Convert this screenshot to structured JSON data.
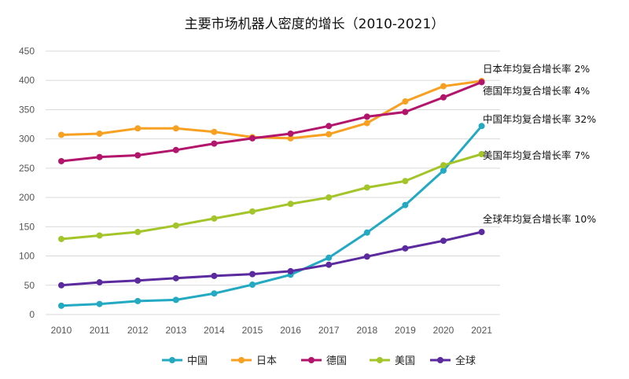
{
  "chart_data": {
    "type": "line",
    "title": "主要市场机器人密度的增长（2010-2021）",
    "xlabel": "",
    "ylabel": "",
    "ylim": [
      0,
      450
    ],
    "yticks": [
      "0",
      "50",
      "100",
      "150",
      "200",
      "250",
      "300",
      "350",
      "400",
      "450"
    ],
    "x": [
      "2010",
      "2011",
      "2012",
      "2013",
      "2014",
      "2015",
      "2016",
      "2017",
      "2018",
      "2019",
      "2020",
      "2021"
    ],
    "grid": true,
    "legend_position": "bottom",
    "series": [
      {
        "name": "中国",
        "color": "#23A9C2",
        "values": [
          15,
          18,
          23,
          25,
          36,
          51,
          68,
          97,
          140,
          187,
          246,
          322
        ]
      },
      {
        "name": "日本",
        "color": "#F7A021",
        "values": [
          307,
          309,
          318,
          318,
          312,
          303,
          301,
          308,
          327,
          364,
          390,
          399
        ]
      },
      {
        "name": "德国",
        "color": "#B2156B",
        "values": [
          262,
          269,
          272,
          281,
          292,
          301,
          309,
          322,
          338,
          346,
          371,
          397
        ]
      },
      {
        "name": "美国",
        "color": "#A4C52A",
        "values": [
          129,
          135,
          141,
          152,
          164,
          176,
          189,
          200,
          217,
          228,
          255,
          274
        ]
      },
      {
        "name": "全球",
        "color": "#5B2A9E",
        "values": [
          50,
          55,
          58,
          62,
          66,
          69,
          74,
          85,
          99,
          113,
          126,
          141
        ]
      }
    ],
    "annotations": [
      {
        "series": "日本",
        "text": "日本年均复合增长率 2%"
      },
      {
        "series": "德国",
        "text": "德国年均复合增长率 4%"
      },
      {
        "series": "中国",
        "text": "中国年均复合增长率 32%"
      },
      {
        "series": "美国",
        "text": "美国年均复合增长率 7%"
      },
      {
        "series": "全球",
        "text": "全球年均复合增长率 10%"
      }
    ]
  }
}
